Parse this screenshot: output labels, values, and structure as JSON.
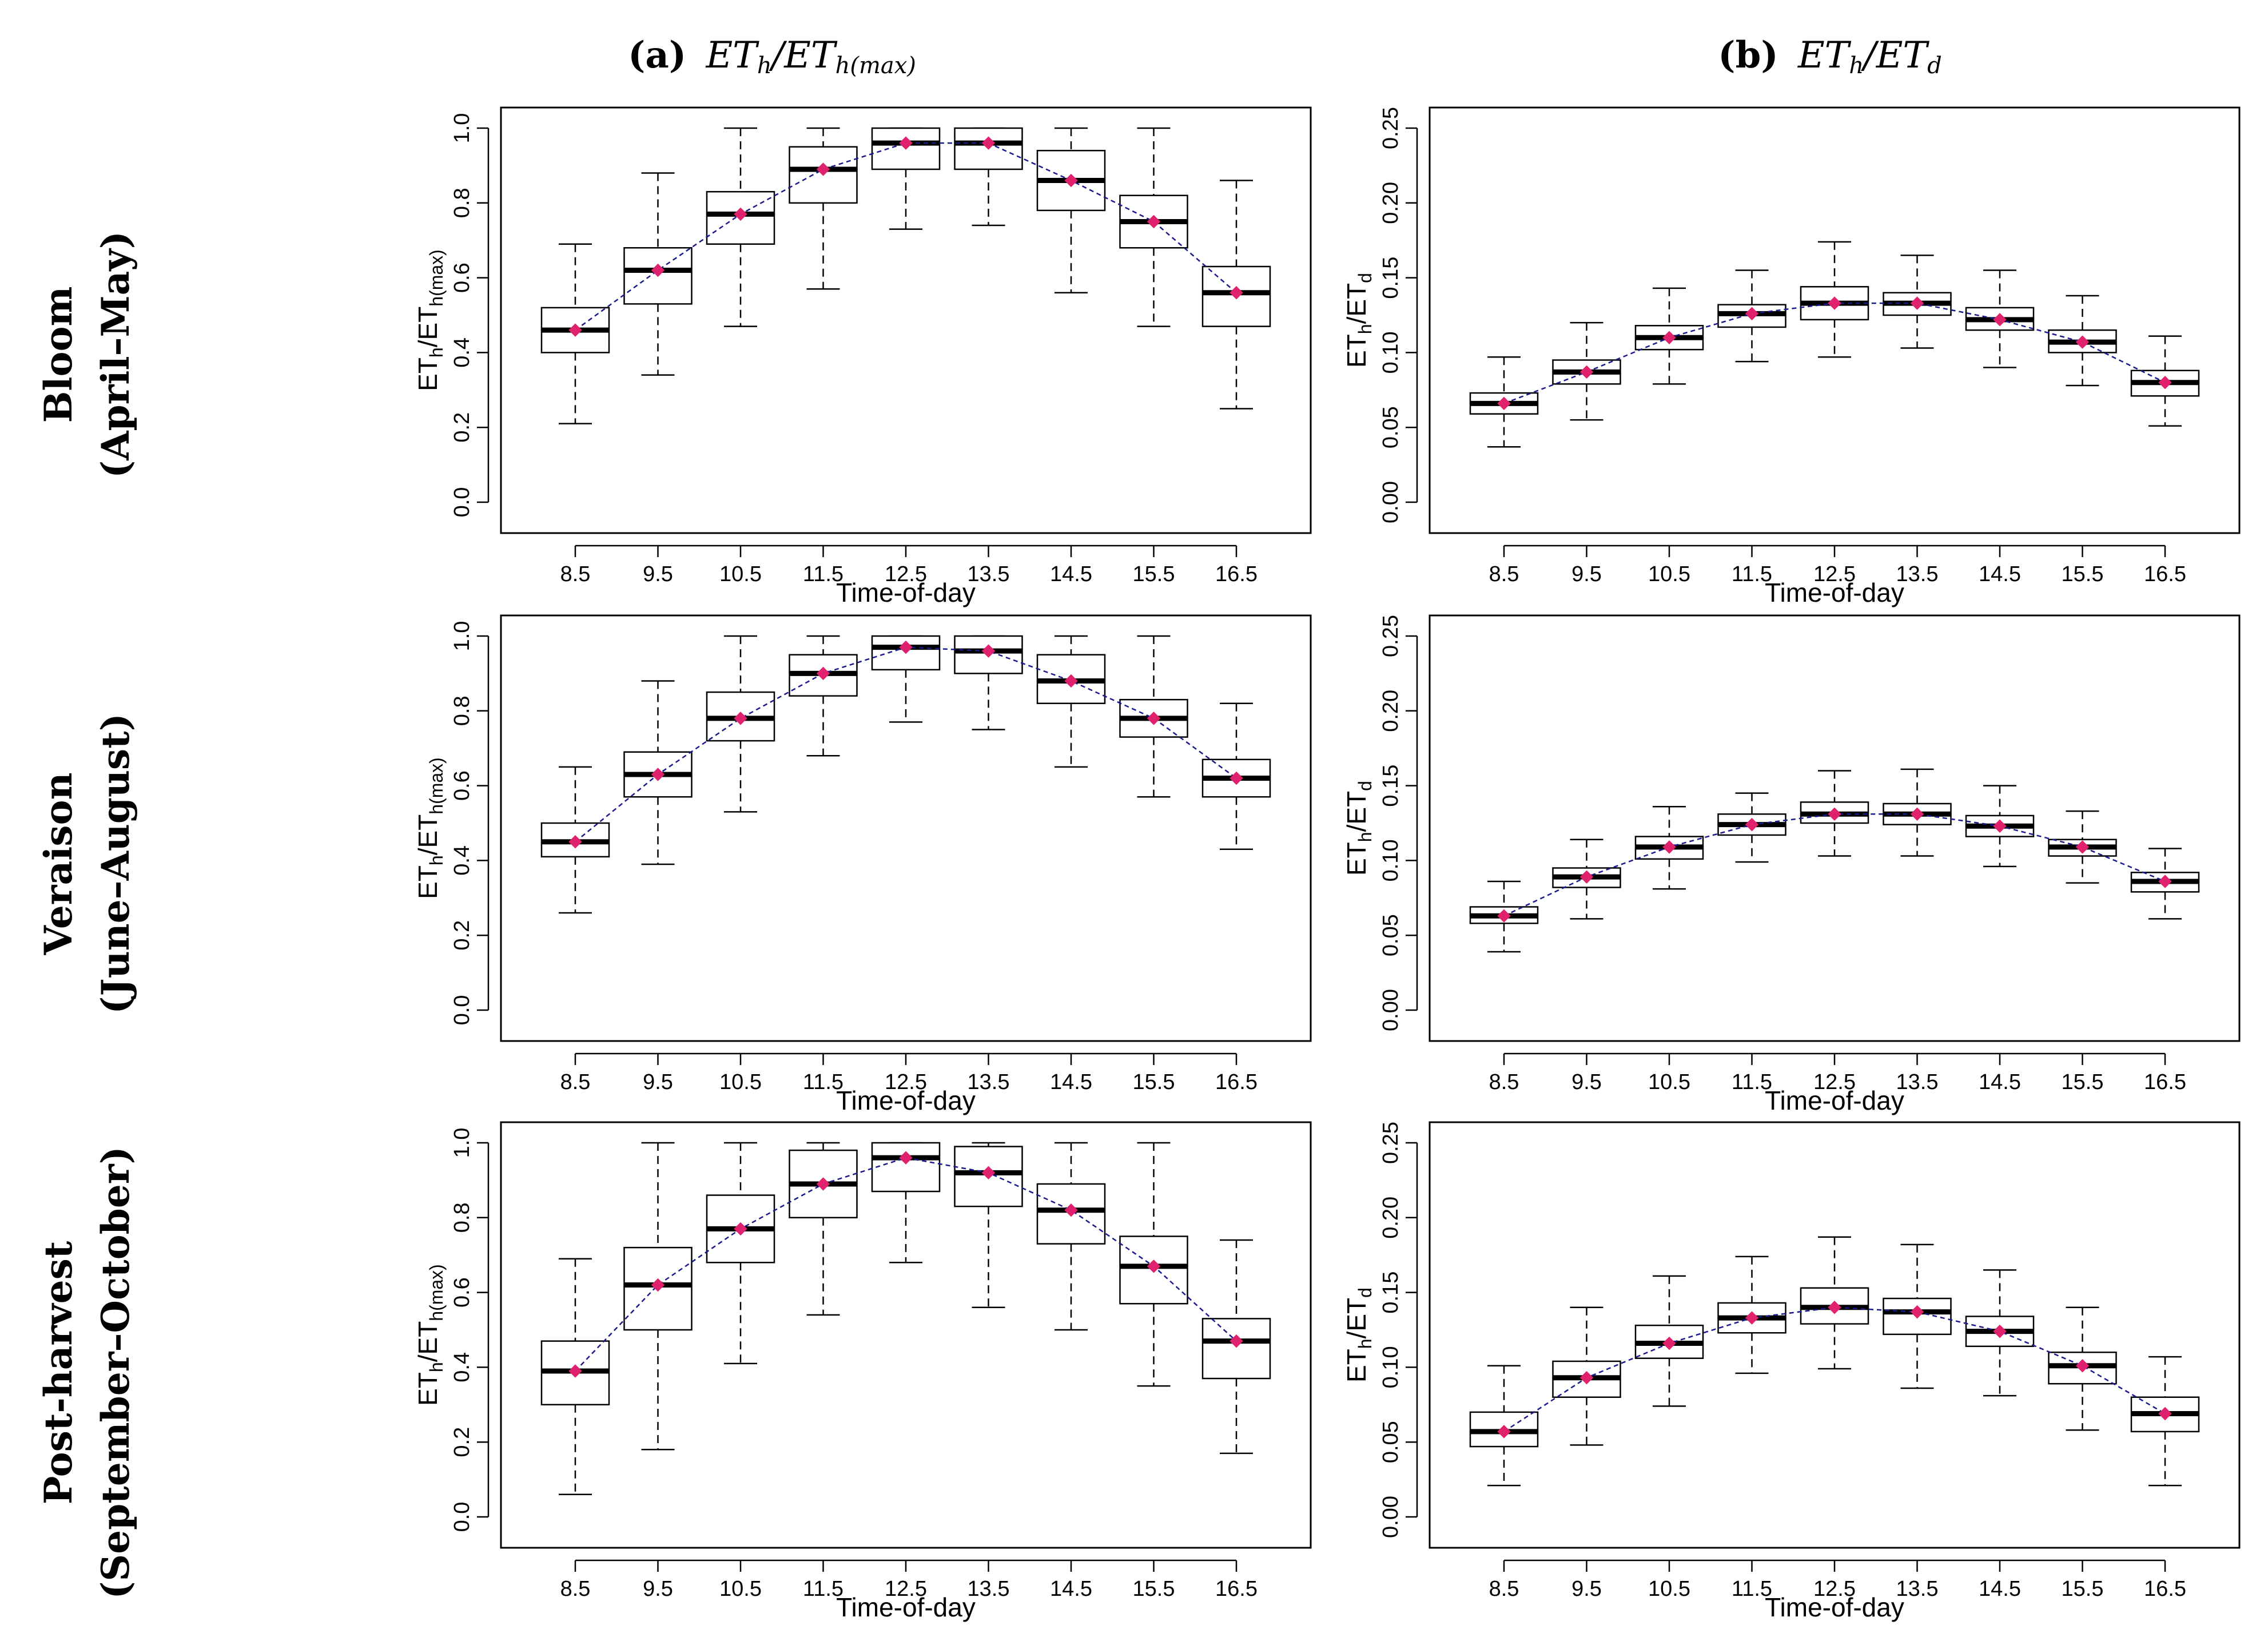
{
  "column_titles": [
    {
      "letter": "(a)",
      "name": "ET",
      "sub": "h",
      "slash": "/ET",
      "sub2": "h(max)"
    },
    {
      "letter": "(b)",
      "name": "ET",
      "sub": "h",
      "slash": "/ET",
      "sub2": "d"
    }
  ],
  "row_titles": [
    {
      "line1": "Bloom",
      "line2": "(April–May)"
    },
    {
      "line1": "Veraison",
      "line2": "(June–August)"
    },
    {
      "line1": "Post-harvest",
      "line2": "(September–October)"
    }
  ],
  "colors": {
    "box_fill": "#ffffff",
    "median": "#000000",
    "trend_line": "#1a1a8c",
    "mean_marker": "#e0226e"
  },
  "chart_data": [
    {
      "type": "boxplot",
      "row": "Bloom",
      "column": "a",
      "xlabel": "Time-of-day",
      "ylabel_main": "ET",
      "ylabel_sub": "h",
      "ylabel_mid": "/ET",
      "ylabel_sub2": "h(max)",
      "categories": [
        "8.5",
        "9.5",
        "10.5",
        "11.5",
        "12.5",
        "13.5",
        "14.5",
        "15.5",
        "16.5"
      ],
      "ylim": [
        0,
        1.0
      ],
      "yticks": [
        "0.0",
        "0.2",
        "0.4",
        "0.6",
        "0.8",
        "1.0"
      ],
      "ytick_values": [
        0,
        0.2,
        0.4,
        0.6,
        0.8,
        1.0
      ],
      "boxes": [
        {
          "min": 0.21,
          "q1": 0.4,
          "median": 0.46,
          "q3": 0.52,
          "max": 0.69,
          "mean": 0.46
        },
        {
          "min": 0.34,
          "q1": 0.53,
          "median": 0.62,
          "q3": 0.68,
          "max": 0.88,
          "mean": 0.62
        },
        {
          "min": 0.47,
          "q1": 0.69,
          "median": 0.77,
          "q3": 0.83,
          "max": 1.0,
          "mean": 0.77
        },
        {
          "min": 0.57,
          "q1": 0.8,
          "median": 0.89,
          "q3": 0.95,
          "max": 1.0,
          "mean": 0.89
        },
        {
          "min": 0.73,
          "q1": 0.89,
          "median": 0.96,
          "q3": 1.0,
          "max": 1.0,
          "mean": 0.96
        },
        {
          "min": 0.74,
          "q1": 0.89,
          "median": 0.96,
          "q3": 1.0,
          "max": 1.0,
          "mean": 0.96
        },
        {
          "min": 0.56,
          "q1": 0.78,
          "median": 0.86,
          "q3": 0.94,
          "max": 1.0,
          "mean": 0.86
        },
        {
          "min": 0.47,
          "q1": 0.68,
          "median": 0.75,
          "q3": 0.82,
          "max": 1.0,
          "mean": 0.75
        },
        {
          "min": 0.25,
          "q1": 0.47,
          "median": 0.56,
          "q3": 0.63,
          "max": 0.86,
          "mean": 0.56
        }
      ]
    },
    {
      "type": "boxplot",
      "row": "Bloom",
      "column": "b",
      "xlabel": "Time-of-day",
      "ylabel_main": "ET",
      "ylabel_sub": "h",
      "ylabel_mid": "/ET",
      "ylabel_sub2": "d",
      "categories": [
        "8.5",
        "9.5",
        "10.5",
        "11.5",
        "12.5",
        "13.5",
        "14.5",
        "15.5",
        "16.5"
      ],
      "ylim": [
        0,
        0.25
      ],
      "yticks": [
        "0.00",
        "0.05",
        "0.10",
        "0.15",
        "0.20",
        "0.25"
      ],
      "ytick_values": [
        0,
        0.05,
        0.1,
        0.15,
        0.2,
        0.25
      ],
      "boxes": [
        {
          "min": 0.037,
          "q1": 0.059,
          "median": 0.066,
          "q3": 0.073,
          "max": 0.097,
          "mean": 0.066
        },
        {
          "min": 0.055,
          "q1": 0.079,
          "median": 0.087,
          "q3": 0.095,
          "max": 0.12,
          "mean": 0.087
        },
        {
          "min": 0.079,
          "q1": 0.102,
          "median": 0.11,
          "q3": 0.118,
          "max": 0.143,
          "mean": 0.11
        },
        {
          "min": 0.094,
          "q1": 0.117,
          "median": 0.126,
          "q3": 0.132,
          "max": 0.155,
          "mean": 0.126
        },
        {
          "min": 0.097,
          "q1": 0.122,
          "median": 0.133,
          "q3": 0.144,
          "max": 0.174,
          "mean": 0.133
        },
        {
          "min": 0.103,
          "q1": 0.125,
          "median": 0.133,
          "q3": 0.14,
          "max": 0.165,
          "mean": 0.133
        },
        {
          "min": 0.09,
          "q1": 0.115,
          "median": 0.122,
          "q3": 0.13,
          "max": 0.155,
          "mean": 0.122
        },
        {
          "min": 0.078,
          "q1": 0.1,
          "median": 0.107,
          "q3": 0.115,
          "max": 0.138,
          "mean": 0.107
        },
        {
          "min": 0.051,
          "q1": 0.071,
          "median": 0.08,
          "q3": 0.088,
          "max": 0.111,
          "mean": 0.08
        }
      ]
    },
    {
      "type": "boxplot",
      "row": "Veraison",
      "column": "a",
      "xlabel": "Time-of-day",
      "ylabel_main": "ET",
      "ylabel_sub": "h",
      "ylabel_mid": "/ET",
      "ylabel_sub2": "h(max)",
      "categories": [
        "8.5",
        "9.5",
        "10.5",
        "11.5",
        "12.5",
        "13.5",
        "14.5",
        "15.5",
        "16.5"
      ],
      "ylim": [
        0,
        1.0
      ],
      "yticks": [
        "0.0",
        "0.2",
        "0.4",
        "0.6",
        "0.8",
        "1.0"
      ],
      "ytick_values": [
        0,
        0.2,
        0.4,
        0.6,
        0.8,
        1.0
      ],
      "boxes": [
        {
          "min": 0.26,
          "q1": 0.41,
          "median": 0.45,
          "q3": 0.5,
          "max": 0.65,
          "mean": 0.45
        },
        {
          "min": 0.39,
          "q1": 0.57,
          "median": 0.63,
          "q3": 0.69,
          "max": 0.88,
          "mean": 0.63
        },
        {
          "min": 0.53,
          "q1": 0.72,
          "median": 0.78,
          "q3": 0.85,
          "max": 1.0,
          "mean": 0.78
        },
        {
          "min": 0.68,
          "q1": 0.84,
          "median": 0.9,
          "q3": 0.95,
          "max": 1.0,
          "mean": 0.9
        },
        {
          "min": 0.77,
          "q1": 0.91,
          "median": 0.97,
          "q3": 1.0,
          "max": 1.0,
          "mean": 0.97
        },
        {
          "min": 0.75,
          "q1": 0.9,
          "median": 0.96,
          "q3": 1.0,
          "max": 1.0,
          "mean": 0.96
        },
        {
          "min": 0.65,
          "q1": 0.82,
          "median": 0.88,
          "q3": 0.95,
          "max": 1.0,
          "mean": 0.88
        },
        {
          "min": 0.57,
          "q1": 0.73,
          "median": 0.78,
          "q3": 0.83,
          "max": 1.0,
          "mean": 0.78
        },
        {
          "min": 0.43,
          "q1": 0.57,
          "median": 0.62,
          "q3": 0.67,
          "max": 0.82,
          "mean": 0.62
        }
      ]
    },
    {
      "type": "boxplot",
      "row": "Veraison",
      "column": "b",
      "xlabel": "Time-of-day",
      "ylabel_main": "ET",
      "ylabel_sub": "h",
      "ylabel_mid": "/ET",
      "ylabel_sub2": "d",
      "categories": [
        "8.5",
        "9.5",
        "10.5",
        "11.5",
        "12.5",
        "13.5",
        "14.5",
        "15.5",
        "16.5"
      ],
      "ylim": [
        0,
        0.25
      ],
      "yticks": [
        "0.00",
        "0.05",
        "0.10",
        "0.15",
        "0.20",
        "0.25"
      ],
      "ytick_values": [
        0,
        0.05,
        0.1,
        0.15,
        0.2,
        0.25
      ],
      "boxes": [
        {
          "min": 0.039,
          "q1": 0.058,
          "median": 0.063,
          "q3": 0.069,
          "max": 0.086,
          "mean": 0.063
        },
        {
          "min": 0.061,
          "q1": 0.082,
          "median": 0.089,
          "q3": 0.095,
          "max": 0.114,
          "mean": 0.089
        },
        {
          "min": 0.081,
          "q1": 0.101,
          "median": 0.109,
          "q3": 0.116,
          "max": 0.136,
          "mean": 0.109
        },
        {
          "min": 0.099,
          "q1": 0.117,
          "median": 0.124,
          "q3": 0.131,
          "max": 0.145,
          "mean": 0.124
        },
        {
          "min": 0.103,
          "q1": 0.125,
          "median": 0.131,
          "q3": 0.139,
          "max": 0.16,
          "mean": 0.131
        },
        {
          "min": 0.103,
          "q1": 0.124,
          "median": 0.131,
          "q3": 0.138,
          "max": 0.161,
          "mean": 0.131
        },
        {
          "min": 0.096,
          "q1": 0.116,
          "median": 0.123,
          "q3": 0.13,
          "max": 0.15,
          "mean": 0.123
        },
        {
          "min": 0.085,
          "q1": 0.103,
          "median": 0.109,
          "q3": 0.114,
          "max": 0.133,
          "mean": 0.109
        },
        {
          "min": 0.061,
          "q1": 0.079,
          "median": 0.086,
          "q3": 0.092,
          "max": 0.108,
          "mean": 0.086
        }
      ]
    },
    {
      "type": "boxplot",
      "row": "Post-harvest",
      "column": "a",
      "xlabel": "Time-of-day",
      "ylabel_main": "ET",
      "ylabel_sub": "h",
      "ylabel_mid": "/ET",
      "ylabel_sub2": "h(max)",
      "categories": [
        "8.5",
        "9.5",
        "10.5",
        "11.5",
        "12.5",
        "13.5",
        "14.5",
        "15.5",
        "16.5"
      ],
      "ylim": [
        0,
        1.0
      ],
      "yticks": [
        "0.0",
        "0.2",
        "0.4",
        "0.6",
        "0.8",
        "1.0"
      ],
      "ytick_values": [
        0,
        0.2,
        0.4,
        0.6,
        0.8,
        1.0
      ],
      "boxes": [
        {
          "min": 0.06,
          "q1": 0.3,
          "median": 0.39,
          "q3": 0.47,
          "max": 0.69,
          "mean": 0.39
        },
        {
          "min": 0.18,
          "q1": 0.5,
          "median": 0.62,
          "q3": 0.72,
          "max": 1.0,
          "mean": 0.62
        },
        {
          "min": 0.41,
          "q1": 0.68,
          "median": 0.77,
          "q3": 0.86,
          "max": 1.0,
          "mean": 0.77
        },
        {
          "min": 0.54,
          "q1": 0.8,
          "median": 0.89,
          "q3": 0.98,
          "max": 1.0,
          "mean": 0.89
        },
        {
          "min": 0.68,
          "q1": 0.87,
          "median": 0.96,
          "q3": 1.0,
          "max": 1.0,
          "mean": 0.96
        },
        {
          "min": 0.56,
          "q1": 0.83,
          "median": 0.92,
          "q3": 0.99,
          "max": 1.0,
          "mean": 0.92
        },
        {
          "min": 0.5,
          "q1": 0.73,
          "median": 0.82,
          "q3": 0.89,
          "max": 1.0,
          "mean": 0.82
        },
        {
          "min": 0.35,
          "q1": 0.57,
          "median": 0.67,
          "q3": 0.75,
          "max": 1.0,
          "mean": 0.67
        },
        {
          "min": 0.17,
          "q1": 0.37,
          "median": 0.47,
          "q3": 0.53,
          "max": 0.74,
          "mean": 0.47
        }
      ]
    },
    {
      "type": "boxplot",
      "row": "Post-harvest",
      "column": "b",
      "xlabel": "Time-of-day",
      "ylabel_main": "ET",
      "ylabel_sub": "h",
      "ylabel_mid": "/ET",
      "ylabel_sub2": "d",
      "categories": [
        "8.5",
        "9.5",
        "10.5",
        "11.5",
        "12.5",
        "13.5",
        "14.5",
        "15.5",
        "16.5"
      ],
      "ylim": [
        0,
        0.25
      ],
      "yticks": [
        "0.00",
        "0.05",
        "0.10",
        "0.15",
        "0.20",
        "0.25"
      ],
      "ytick_values": [
        0,
        0.05,
        0.1,
        0.15,
        0.2,
        0.25
      ],
      "boxes": [
        {
          "min": 0.021,
          "q1": 0.047,
          "median": 0.057,
          "q3": 0.07,
          "max": 0.101,
          "mean": 0.057
        },
        {
          "min": 0.048,
          "q1": 0.08,
          "median": 0.093,
          "q3": 0.104,
          "max": 0.14,
          "mean": 0.093
        },
        {
          "min": 0.074,
          "q1": 0.106,
          "median": 0.116,
          "q3": 0.128,
          "max": 0.161,
          "mean": 0.116
        },
        {
          "min": 0.096,
          "q1": 0.123,
          "median": 0.133,
          "q3": 0.143,
          "max": 0.174,
          "mean": 0.133
        },
        {
          "min": 0.099,
          "q1": 0.129,
          "median": 0.14,
          "q3": 0.153,
          "max": 0.187,
          "mean": 0.14
        },
        {
          "min": 0.086,
          "q1": 0.122,
          "median": 0.137,
          "q3": 0.146,
          "max": 0.182,
          "mean": 0.137
        },
        {
          "min": 0.081,
          "q1": 0.114,
          "median": 0.124,
          "q3": 0.134,
          "max": 0.165,
          "mean": 0.124
        },
        {
          "min": 0.058,
          "q1": 0.089,
          "median": 0.101,
          "q3": 0.11,
          "max": 0.14,
          "mean": 0.101
        },
        {
          "min": 0.021,
          "q1": 0.057,
          "median": 0.069,
          "q3": 0.08,
          "max": 0.107,
          "mean": 0.069
        }
      ]
    }
  ]
}
